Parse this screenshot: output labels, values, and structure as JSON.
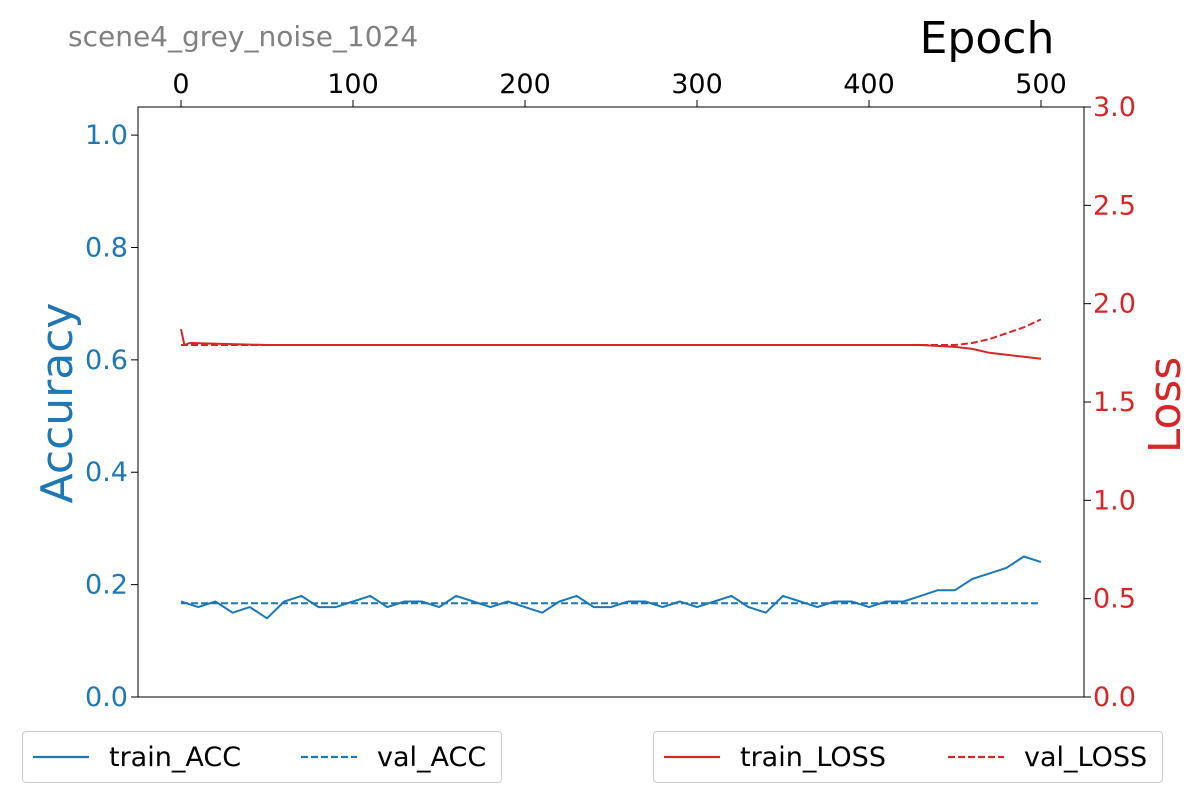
{
  "chart_data": {
    "type": "line",
    "title": "scene4_grey_noise_1024",
    "xlabel": "Epoch",
    "ylabel_left": "Accuracy",
    "ylabel_right": "Loss",
    "xlim": [
      -25,
      525
    ],
    "ylim_left": [
      0.0,
      1.05
    ],
    "ylim_right": [
      0.0,
      3.0
    ],
    "xticks": [
      "0",
      "100",
      "200",
      "300",
      "400",
      "500"
    ],
    "yticks_left": [
      "0.0",
      "0.2",
      "0.4",
      "0.6",
      "0.8",
      "1.0"
    ],
    "yticks_right": [
      "0.0",
      "0.5",
      "1.0",
      "1.5",
      "2.0",
      "2.5",
      "3.0"
    ],
    "grid": false,
    "colors": {
      "acc": "#1f77b4",
      "loss": "#d62728",
      "title": "#808080"
    },
    "series": [
      {
        "name": "train_ACC",
        "axis": "left",
        "style": "solid",
        "x": [
          0,
          10,
          20,
          30,
          40,
          50,
          60,
          70,
          80,
          90,
          100,
          110,
          120,
          130,
          140,
          150,
          160,
          170,
          180,
          190,
          200,
          210,
          220,
          230,
          240,
          250,
          260,
          270,
          280,
          290,
          300,
          310,
          320,
          330,
          340,
          350,
          360,
          370,
          380,
          390,
          400,
          410,
          420,
          430,
          440,
          450,
          460,
          470,
          480,
          490,
          500
        ],
        "y": [
          0.17,
          0.16,
          0.17,
          0.15,
          0.16,
          0.14,
          0.17,
          0.18,
          0.16,
          0.16,
          0.17,
          0.18,
          0.16,
          0.17,
          0.17,
          0.16,
          0.18,
          0.17,
          0.16,
          0.17,
          0.16,
          0.15,
          0.17,
          0.18,
          0.16,
          0.16,
          0.17,
          0.17,
          0.16,
          0.17,
          0.16,
          0.17,
          0.18,
          0.16,
          0.15,
          0.18,
          0.17,
          0.16,
          0.17,
          0.17,
          0.16,
          0.17,
          0.17,
          0.18,
          0.19,
          0.19,
          0.21,
          0.22,
          0.23,
          0.25,
          0.24
        ]
      },
      {
        "name": "val_ACC",
        "axis": "left",
        "style": "dashed",
        "x": [
          0,
          500
        ],
        "y": [
          0.167,
          0.167
        ]
      },
      {
        "name": "train_LOSS",
        "axis": "right",
        "style": "solid",
        "x": [
          0,
          2,
          5,
          50,
          100,
          150,
          200,
          250,
          300,
          350,
          400,
          430,
          450,
          460,
          470,
          480,
          490,
          500
        ],
        "y": [
          1.87,
          1.79,
          1.8,
          1.79,
          1.79,
          1.79,
          1.79,
          1.79,
          1.79,
          1.79,
          1.79,
          1.79,
          1.78,
          1.77,
          1.75,
          1.74,
          1.73,
          1.72
        ]
      },
      {
        "name": "val_LOSS",
        "axis": "right",
        "style": "dashed",
        "x": [
          0,
          50,
          100,
          150,
          200,
          250,
          300,
          350,
          400,
          430,
          450,
          460,
          470,
          480,
          490,
          500
        ],
        "y": [
          1.79,
          1.79,
          1.79,
          1.79,
          1.79,
          1.79,
          1.79,
          1.79,
          1.79,
          1.79,
          1.79,
          1.8,
          1.82,
          1.85,
          1.88,
          1.92
        ]
      }
    ],
    "legend_left": [
      "train_ACC",
      "val_ACC"
    ],
    "legend_right": [
      "train_LOSS",
      "val_LOSS"
    ]
  }
}
